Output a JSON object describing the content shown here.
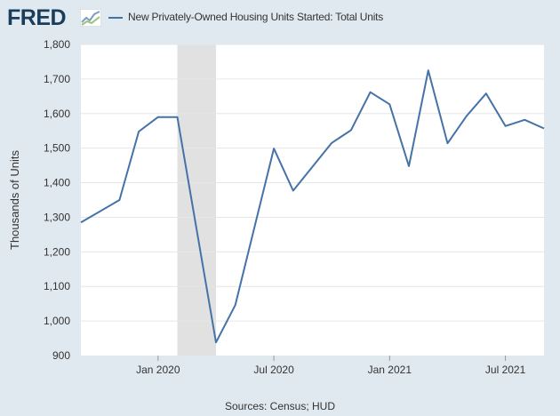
{
  "header": {
    "logo_text": "FRED",
    "legend_label": "New Privately-Owned Housing Units Started: Total Units"
  },
  "footer": {
    "source": "Sources: Census; HUD"
  },
  "colors": {
    "series": "#4572a7",
    "recession": "#e1e1e1",
    "background": "#e1e9f0"
  },
  "chart_data": {
    "type": "line",
    "title": "New Privately-Owned Housing Units Started: Total Units",
    "xlabel": "",
    "ylabel": "Thousands of Units",
    "ylim": [
      900,
      1800
    ],
    "yticks": [
      900,
      1000,
      1100,
      1200,
      1300,
      1400,
      1500,
      1600,
      1700,
      1800
    ],
    "ytick_labels": [
      "900",
      "1,000",
      "1,100",
      "1,200",
      "1,300",
      "1,400",
      "1,500",
      "1,600",
      "1,700",
      "1,800"
    ],
    "x_start": "Sep 2019",
    "x_end": "Sep 2021",
    "xticks": [
      {
        "label": "Jan 2020",
        "month": 4
      },
      {
        "label": "Jul 2020",
        "month": 10
      },
      {
        "label": "Jan 2021",
        "month": 16
      },
      {
        "label": "Jul 2021",
        "month": 22
      }
    ],
    "recession": {
      "start_month": 5,
      "end_month": 7,
      "label": "Feb 2020 - Apr 2020"
    },
    "series": [
      {
        "name": "New Privately-Owned Housing Units Started: Total Units",
        "points": [
          {
            "month": 0,
            "value": 1285
          },
          {
            "month": 2,
            "value": 1350
          },
          {
            "month": 3,
            "value": 1548
          },
          {
            "month": 4,
            "value": 1590
          },
          {
            "month": 5,
            "value": 1590
          },
          {
            "month": 7,
            "value": 938
          },
          {
            "month": 8,
            "value": 1046
          },
          {
            "month": 10,
            "value": 1499
          },
          {
            "month": 11,
            "value": 1377
          },
          {
            "month": 13,
            "value": 1515
          },
          {
            "month": 14,
            "value": 1552
          },
          {
            "month": 15,
            "value": 1662
          },
          {
            "month": 16,
            "value": 1627
          },
          {
            "month": 17,
            "value": 1448
          },
          {
            "month": 18,
            "value": 1725
          },
          {
            "month": 19,
            "value": 1514
          },
          {
            "month": 20,
            "value": 1594
          },
          {
            "month": 21,
            "value": 1658
          },
          {
            "month": 22,
            "value": 1564
          },
          {
            "month": 23,
            "value": 1582
          },
          {
            "month": 24,
            "value": 1557
          }
        ]
      }
    ]
  }
}
